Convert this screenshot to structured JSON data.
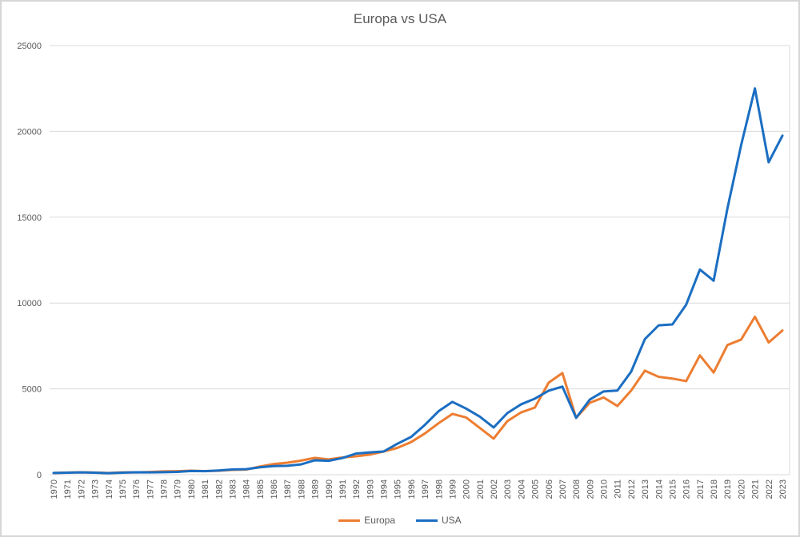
{
  "title": "Europa vs USA",
  "colors": {
    "europa": "#ED7D31",
    "usa": "#1B6EC2",
    "grid": "#D9D9D9",
    "plot_border": "#D9D9D9",
    "axis_text": "#595959",
    "title_text": "#595959",
    "chart_border": "#D6D6D6"
  },
  "legend": {
    "items": [
      {
        "label": "Europa",
        "color": "#ED7D31"
      },
      {
        "label": "USA",
        "color": "#1B6EC2"
      }
    ],
    "position": "bottom"
  },
  "chart_data": {
    "type": "line",
    "title": "Europa vs USA",
    "xlabel": "",
    "ylabel": "",
    "ylim": [
      0,
      25000
    ],
    "yticks": [
      0,
      5000,
      10000,
      15000,
      20000,
      25000
    ],
    "grid": "horizontal",
    "legend_position": "bottom",
    "x": [
      1970,
      1971,
      1972,
      1973,
      1974,
      1975,
      1976,
      1977,
      1978,
      1979,
      1980,
      1981,
      1982,
      1983,
      1984,
      1985,
      1986,
      1987,
      1988,
      1989,
      1990,
      1991,
      1992,
      1993,
      1994,
      1995,
      1996,
      1997,
      1998,
      1999,
      2000,
      2001,
      2002,
      2003,
      2004,
      2005,
      2006,
      2007,
      2008,
      2009,
      2010,
      2011,
      2012,
      2013,
      2014,
      2015,
      2016,
      2017,
      2018,
      2019,
      2020,
      2021,
      2022,
      2023
    ],
    "series": [
      {
        "name": "Europa",
        "color": "#ED7D31",
        "values": [
          100,
          125,
          140,
          125,
          100,
          135,
          135,
          160,
          190,
          205,
          230,
          210,
          225,
          280,
          295,
          475,
          615,
          700,
          820,
          980,
          890,
          1000,
          1070,
          1170,
          1350,
          1560,
          1900,
          2400,
          3000,
          3540,
          3330,
          2720,
          2100,
          3120,
          3630,
          3910,
          5360,
          5920,
          3310,
          4190,
          4500,
          4000,
          4900,
          6060,
          5700,
          5600,
          5450,
          6950,
          5950,
          7550,
          7870,
          9200,
          7700,
          8400
        ]
      },
      {
        "name": "USA",
        "color": "#1B6EC2",
        "values": [
          100,
          115,
          135,
          115,
          85,
          115,
          140,
          135,
          145,
          165,
          215,
          205,
          245,
          300,
          320,
          430,
          500,
          520,
          600,
          840,
          810,
          970,
          1230,
          1300,
          1350,
          1800,
          2200,
          2900,
          3700,
          4240,
          3850,
          3380,
          2750,
          3590,
          4100,
          4430,
          4890,
          5130,
          3310,
          4380,
          4850,
          4900,
          6000,
          7900,
          8700,
          8750,
          9900,
          11950,
          11300,
          15500,
          19200,
          22500,
          18200,
          19750
        ]
      }
    ]
  }
}
